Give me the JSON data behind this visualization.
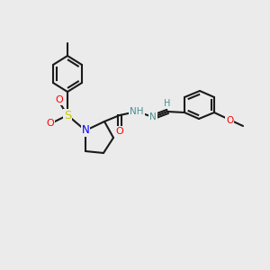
{
  "bg_color": "#ebebeb",
  "bond_color": "#1a1a1a",
  "bond_lw": 1.5,
  "atom_colors": {
    "N": "#0000ff",
    "O": "#ff0000",
    "S": "#cccc00",
    "C": "#1a1a1a",
    "H_label": "#4a9090"
  },
  "font_size": 7.5
}
